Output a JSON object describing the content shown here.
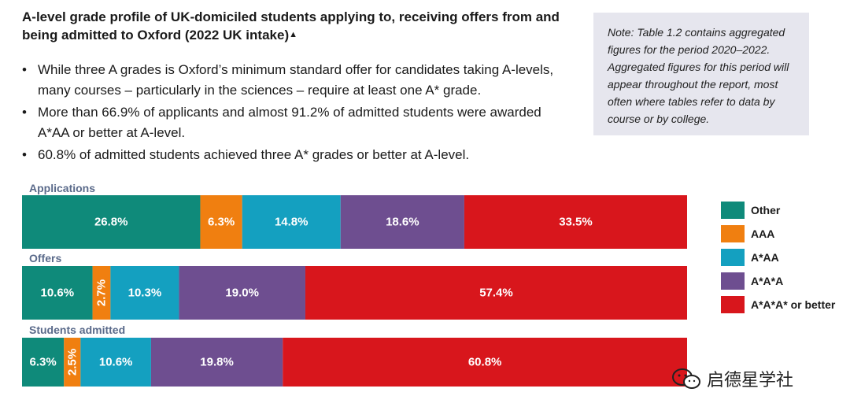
{
  "title": "A-level grade profile of UK-domiciled students applying to, receiving offers from and being admitted to Oxford (2022 UK intake)",
  "title_marker": "▲",
  "bullets": [
    "While three A grades is Oxford’s minimum standard offer for candidates taking A-levels, many courses – particularly in the sciences – require at least one A* grade.",
    "More than 66.9% of applicants and almost 91.2% of admitted students were awarded A*AA or better at A-level.",
    "60.8% of admitted students achieved three A* grades or better at A-level."
  ],
  "note": "Note: Table 1.2 contains aggregated figures for the period 2020–2022. Aggregated figures for this period will appear throughout the report, most often where tables refer to data by course or by college.",
  "watermark": "启德星学社",
  "colors": {
    "Other": "#0f8a7a",
    "AAA": "#f07f10",
    "A*AA": "#14a0c0",
    "A*A*A": "#6e4e90",
    "A*A*A* or better": "#d8161c"
  },
  "chart_data": {
    "type": "bar",
    "orientation": "horizontal-stacked-100",
    "categories": [
      "Applications",
      "Offers",
      "Students admitted"
    ],
    "series": [
      {
        "name": "Other",
        "values": [
          26.8,
          10.6,
          6.3
        ],
        "labels": [
          "26.8%",
          "10.6%",
          "6.3%"
        ]
      },
      {
        "name": "AAA",
        "values": [
          6.3,
          2.7,
          2.5
        ],
        "labels": [
          "6.3%",
          "2.7%",
          "2.5%"
        ]
      },
      {
        "name": "A*AA",
        "values": [
          14.8,
          10.3,
          10.6
        ],
        "labels": [
          "14.8%",
          "10.3%",
          "10.6%"
        ]
      },
      {
        "name": "A*A*A",
        "values": [
          18.6,
          19.0,
          19.8
        ],
        "labels": [
          "18.6%",
          "19.0%",
          "19.8%"
        ]
      },
      {
        "name": "A*A*A* or better",
        "values": [
          33.5,
          57.4,
          60.8
        ],
        "labels": [
          "33.5%",
          "57.4%",
          "60.8%"
        ]
      }
    ],
    "legend": [
      "Other",
      "AAA",
      "A*AA",
      "A*A*A",
      "A*A*A* or better"
    ],
    "legend_position": "right",
    "xlim": [
      0,
      100
    ]
  }
}
